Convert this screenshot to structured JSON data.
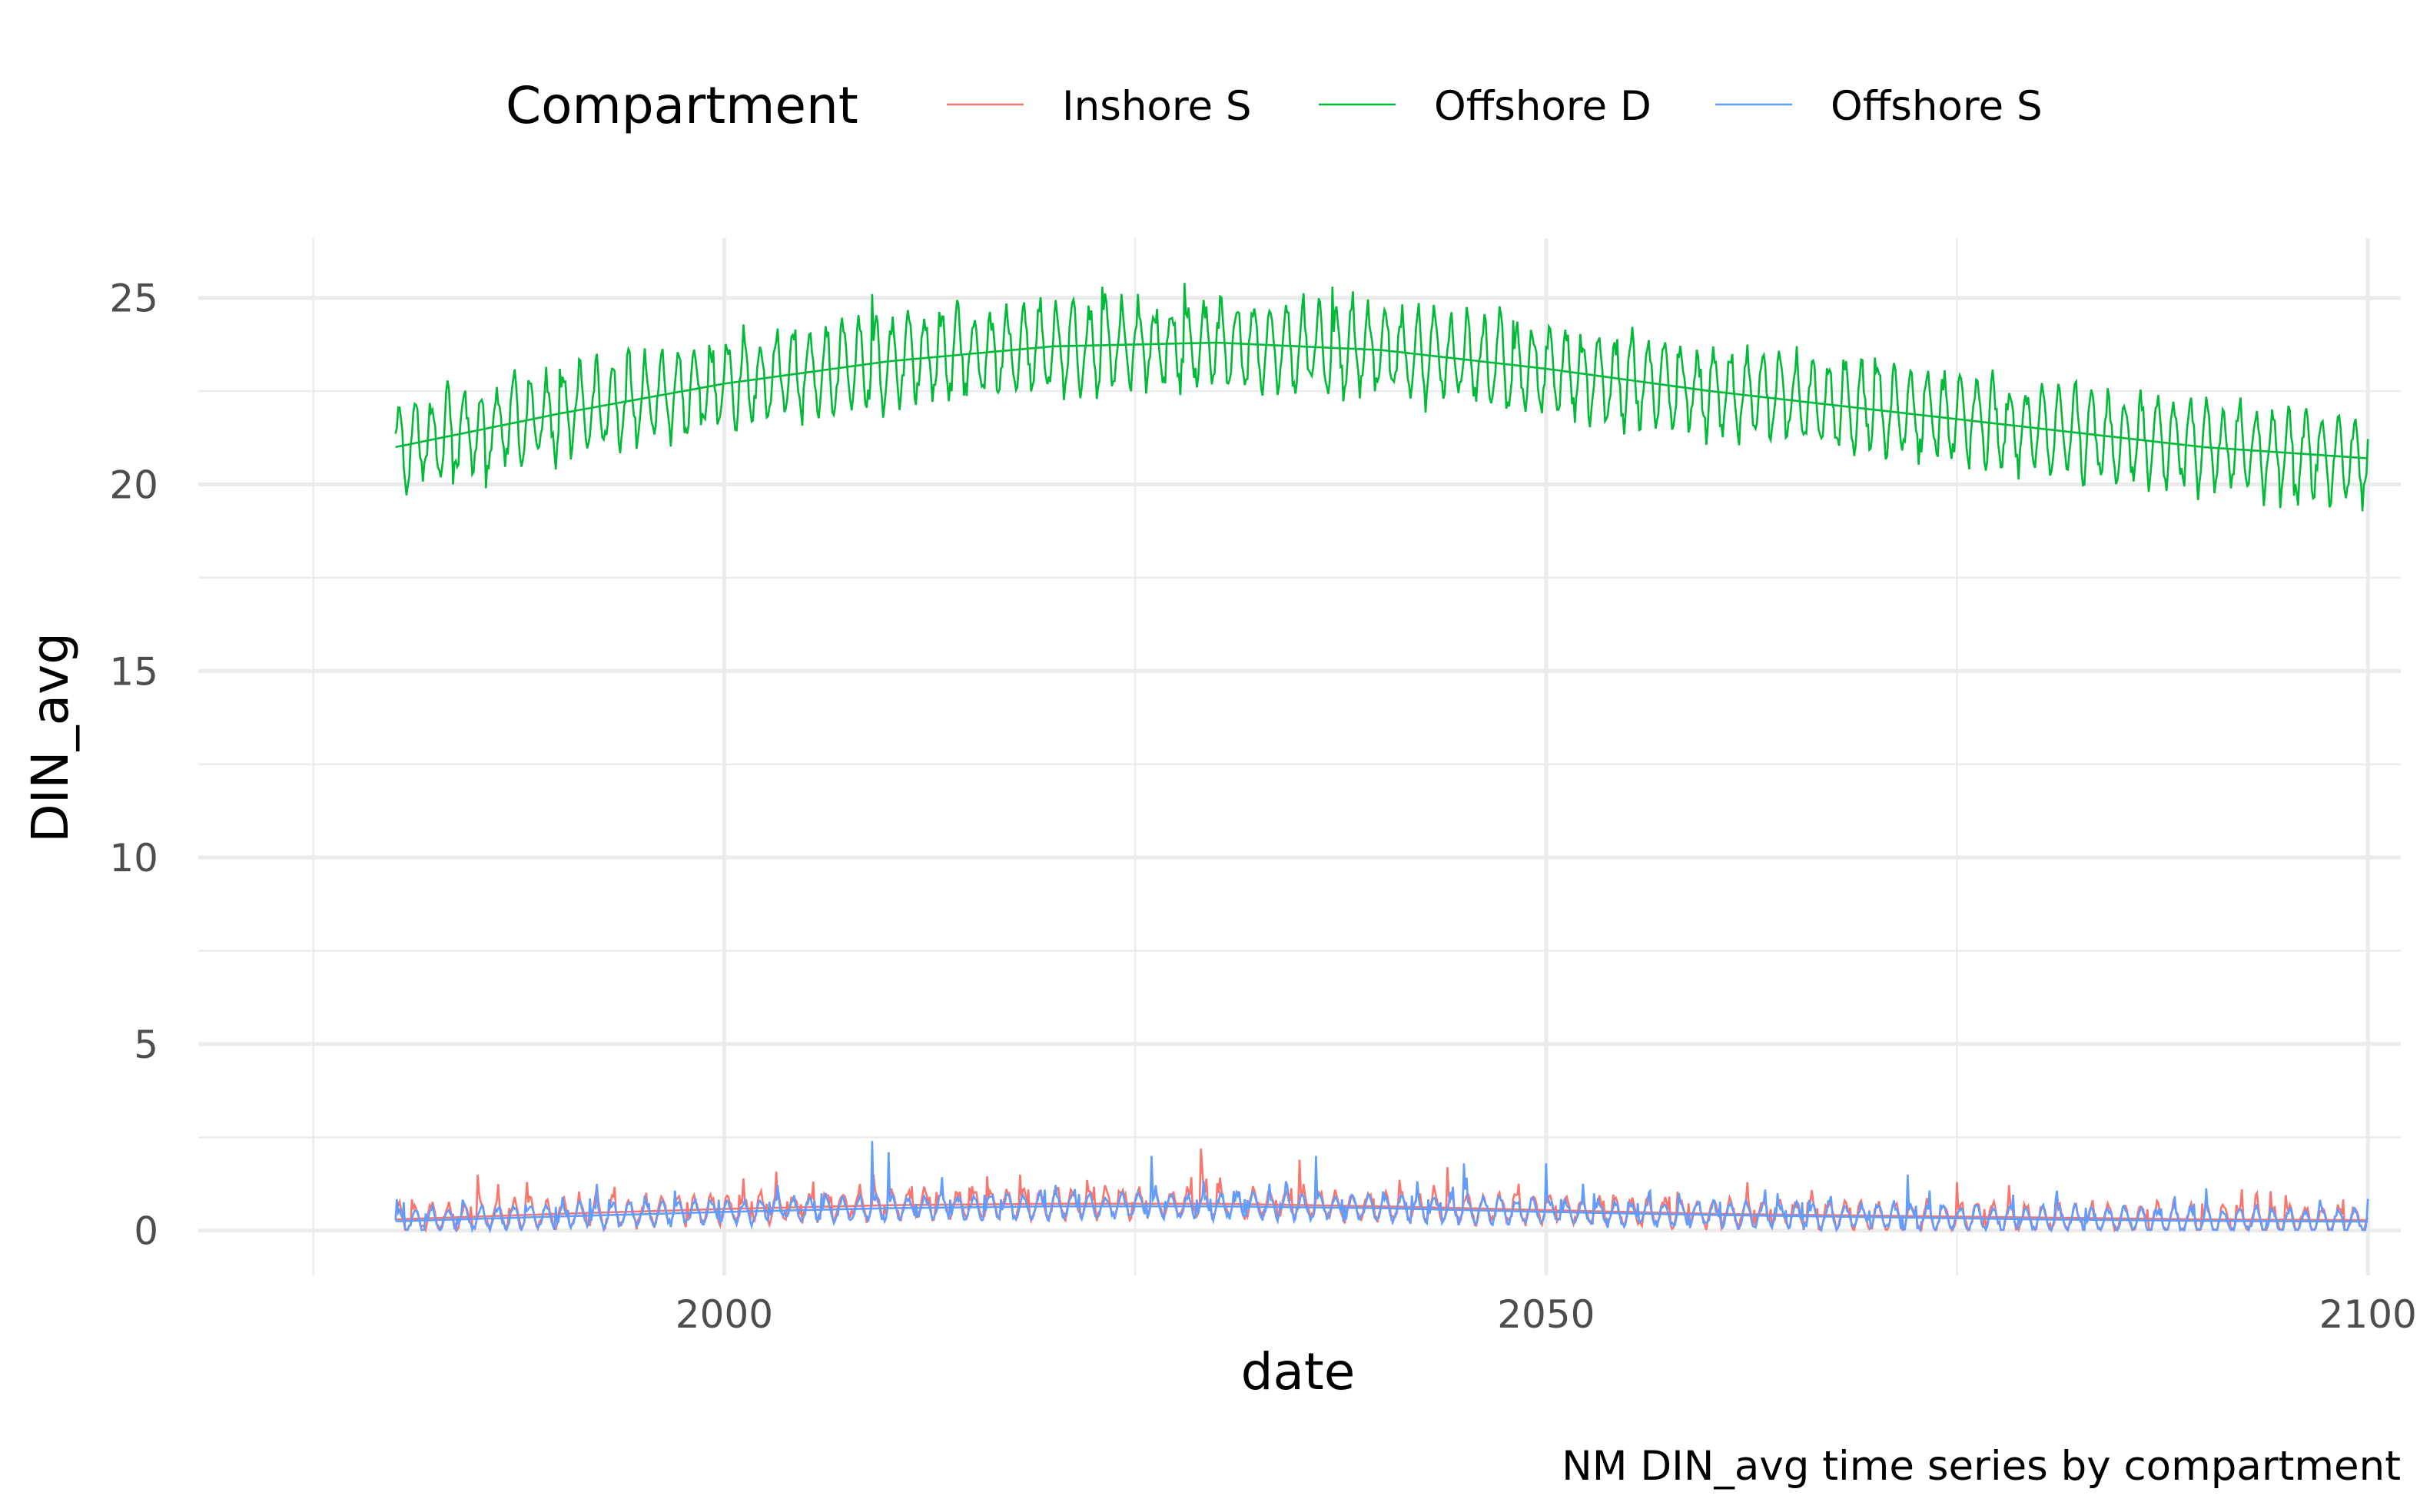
{
  "chart_data": {
    "type": "line",
    "caption": "NM DIN_avg time series by compartment",
    "xlabel": "date",
    "ylabel": "DIN_avg",
    "xlim": [
      1968,
      2102
    ],
    "ylim": [
      -1.2,
      26.6
    ],
    "x_ticks": [
      2000,
      2050,
      2100
    ],
    "x_tick_labels": [
      "2000",
      "2050",
      "2100"
    ],
    "y_ticks": [
      0,
      5,
      10,
      15,
      20,
      25
    ],
    "y_tick_labels": [
      "0",
      "5",
      "10",
      "15",
      "20",
      "25"
    ],
    "grid": true,
    "legend": {
      "title": "Compartment",
      "position": "top",
      "entries": [
        "Inshore S",
        "Offshore D",
        "Offshore S"
      ]
    },
    "x_range": [
      1980,
      2100
    ],
    "series": [
      {
        "name": "Inshore S",
        "color": "#F8766D",
        "trend_x": [
          1980,
          1990,
          2000,
          2010,
          2020,
          2030,
          2040,
          2050,
          2060,
          2070,
          2080,
          2090,
          2100
        ],
        "trend_y": [
          0.3,
          0.45,
          0.58,
          0.68,
          0.72,
          0.72,
          0.65,
          0.55,
          0.45,
          0.4,
          0.35,
          0.3,
          0.28
        ],
        "seasonal_amplitude": 0.35,
        "peaks": [
          [
            1985,
            1.5
          ],
          [
            1988,
            1.3
          ],
          [
            2010,
            1.6
          ],
          [
            2018,
            1.5
          ],
          [
            2026,
            1.9
          ],
          [
            2029,
            2.2
          ],
          [
            2035,
            1.9
          ],
          [
            2044,
            1.7
          ],
          [
            2075,
            1.3
          ],
          [
            2095,
            0.95
          ]
        ]
      },
      {
        "name": "Offshore D",
        "color": "#00BA38",
        "trend_x": [
          1980,
          1990,
          2000,
          2010,
          2020,
          2030,
          2040,
          2050,
          2060,
          2070,
          2080,
          2090,
          2100
        ],
        "trend_y": [
          21.0,
          21.9,
          22.7,
          23.3,
          23.7,
          23.8,
          23.6,
          23.1,
          22.5,
          22.0,
          21.5,
          21.0,
          20.7
        ],
        "seasonal_amplitude": 1.1,
        "peaks": [
          [
            1990,
            23.1
          ],
          [
            2009,
            25.1
          ],
          [
            2023,
            25.3
          ],
          [
            2028,
            25.4
          ],
          [
            2037,
            25.3
          ],
          [
            2048,
            24.4
          ],
          [
            2058,
            23.5
          ],
          [
            2070,
            23.4
          ],
          [
            2092,
            21.7
          ]
        ],
        "troughs": [
          [
            1983,
            20.0
          ],
          [
            1985,
            19.9
          ],
          [
            2095,
            19.7
          ]
        ]
      },
      {
        "name": "Offshore S",
        "color": "#619CFF",
        "trend_x": [
          1980,
          1990,
          2000,
          2010,
          2020,
          2030,
          2040,
          2050,
          2060,
          2070,
          2080,
          2090,
          2100
        ],
        "trend_y": [
          0.25,
          0.38,
          0.5,
          0.6,
          0.65,
          0.65,
          0.6,
          0.5,
          0.42,
          0.36,
          0.3,
          0.26,
          0.24
        ],
        "seasonal_amplitude": 0.3,
        "peaks": [
          [
            2009,
            2.4
          ],
          [
            2010,
            2.1
          ],
          [
            2026,
            2.0
          ],
          [
            2036,
            2.0
          ],
          [
            2045,
            1.8
          ],
          [
            2050,
            1.8
          ],
          [
            2072,
            1.5
          ],
          [
            2100,
            0.85
          ]
        ]
      }
    ]
  }
}
